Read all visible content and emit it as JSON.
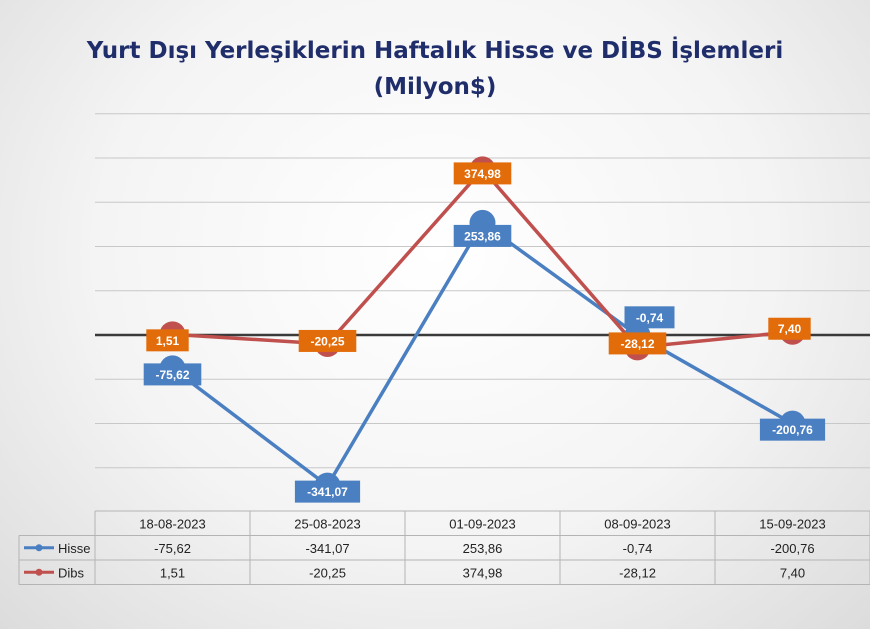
{
  "chart_data": {
    "type": "line",
    "title_line1": "Yurt Dışı Yerleşiklerin Haftalık Hisse ve DİBS İşlemleri",
    "title_line2": "(Milyon$)",
    "categories": [
      "18-08-2023",
      "25-08-2023",
      "01-09-2023",
      "08-09-2023",
      "15-09-2023"
    ],
    "series": [
      {
        "name": "Hisse",
        "color": "#4a7fc1",
        "values": [
          -75.62,
          -341.07,
          253.86,
          -0.74,
          -200.76
        ],
        "labels": [
          "-75,62",
          "-341,07",
          "253,86",
          "-0,74",
          "-200,76"
        ]
      },
      {
        "name": "Dibs",
        "color": "#c0504d",
        "label_color": "#e36c0a",
        "values": [
          1.51,
          -20.25,
          374.98,
          -28.12,
          7.4
        ],
        "labels": [
          "1,51",
          "-20,25",
          "374,98",
          "-28,12",
          "7,40"
        ]
      }
    ],
    "ylim": [
      -300,
      500
    ],
    "grid": true,
    "legend": "data-table-below"
  }
}
